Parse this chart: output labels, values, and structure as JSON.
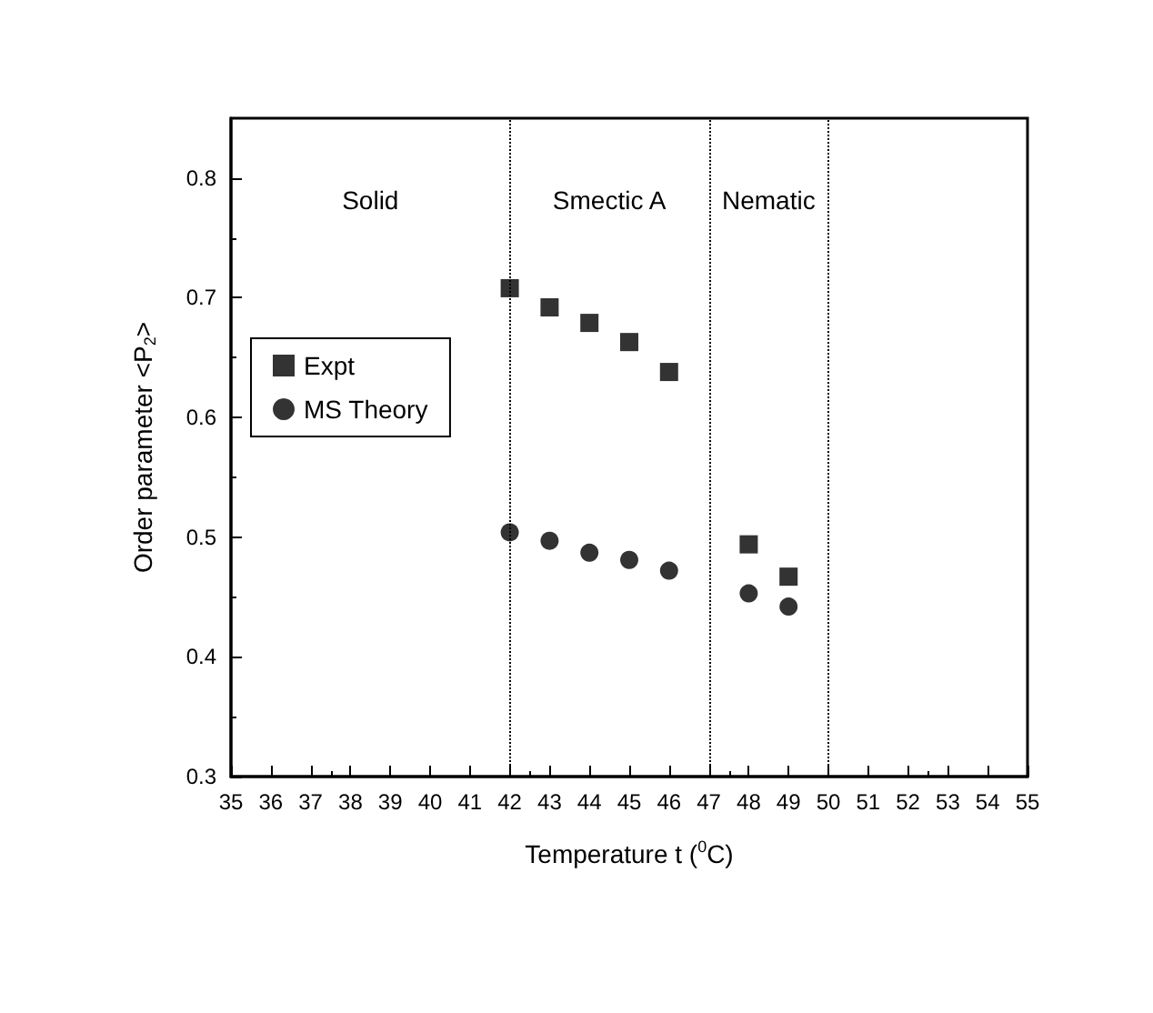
{
  "chart_data": {
    "type": "scatter",
    "xlabel": "Temperature t ($^{0}$C)",
    "ylabel": "Order parameter <P$_{2}$>",
    "x": [
      42,
      43,
      44,
      45,
      46,
      48,
      49
    ],
    "series": [
      {
        "name": "Expt",
        "color": "#000000",
        "marker": "square",
        "values": [
          0.708,
          0.692,
          0.679,
          0.663,
          0.638,
          0.494,
          0.467
        ]
      },
      {
        "name": "MS Theory",
        "color": "#000000",
        "marker": "circle",
        "values": [
          0.504,
          0.497,
          0.487,
          0.481,
          0.472,
          0.453,
          0.442
        ]
      }
    ],
    "xlim": [
      35,
      55
    ],
    "xticks": [
      35,
      36,
      37,
      38,
      39,
      40,
      41,
      42,
      43,
      44,
      45,
      46,
      47,
      48,
      49,
      50,
      51,
      52,
      53,
      54,
      55
    ],
    "ylim": [
      0.3,
      0.85
    ],
    "yticks": [
      0.3,
      0.4,
      0.5,
      0.6,
      0.7,
      0.8
    ],
    "ref_lines": [
      {
        "axis": "x",
        "value": 42,
        "line_style": "dotted",
        "color": "#000000"
      },
      {
        "axis": "x",
        "value": 47,
        "line_style": "dotted",
        "color": "#000000"
      },
      {
        "axis": "x",
        "value": 50,
        "line_style": "dotted",
        "color": "#000000"
      }
    ],
    "annotations": [
      "Solid",
      "Smectic A",
      "Nematic"
    ],
    "legend": "left",
    "grid": false
  }
}
